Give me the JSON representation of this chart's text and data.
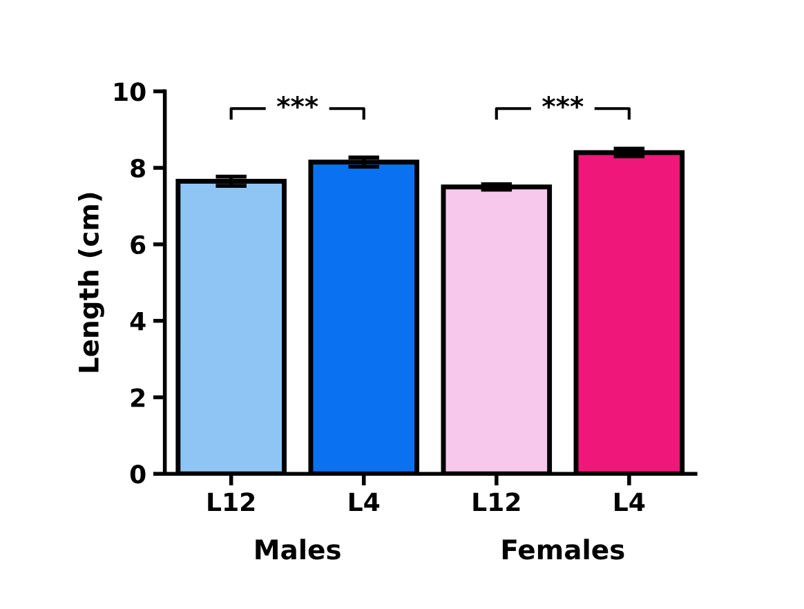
{
  "chart_data": {
    "type": "bar",
    "ylabel": "Length (cm)",
    "categories": [
      "L12",
      "L4",
      "L12",
      "L4"
    ],
    "values": [
      7.65,
      8.15,
      7.5,
      8.4
    ],
    "errors": [
      0.12,
      0.12,
      0.07,
      0.1
    ],
    "colors": [
      "#8ec5f5",
      "#0a72f0",
      "#f8c8ec",
      "#f0177a"
    ],
    "ylim": [
      0,
      10
    ],
    "yticks": [
      0,
      2,
      4,
      6,
      8,
      10
    ],
    "grid": false,
    "legend": false,
    "annotations": [
      "***",
      "***",
      "Males",
      "Females"
    ]
  }
}
